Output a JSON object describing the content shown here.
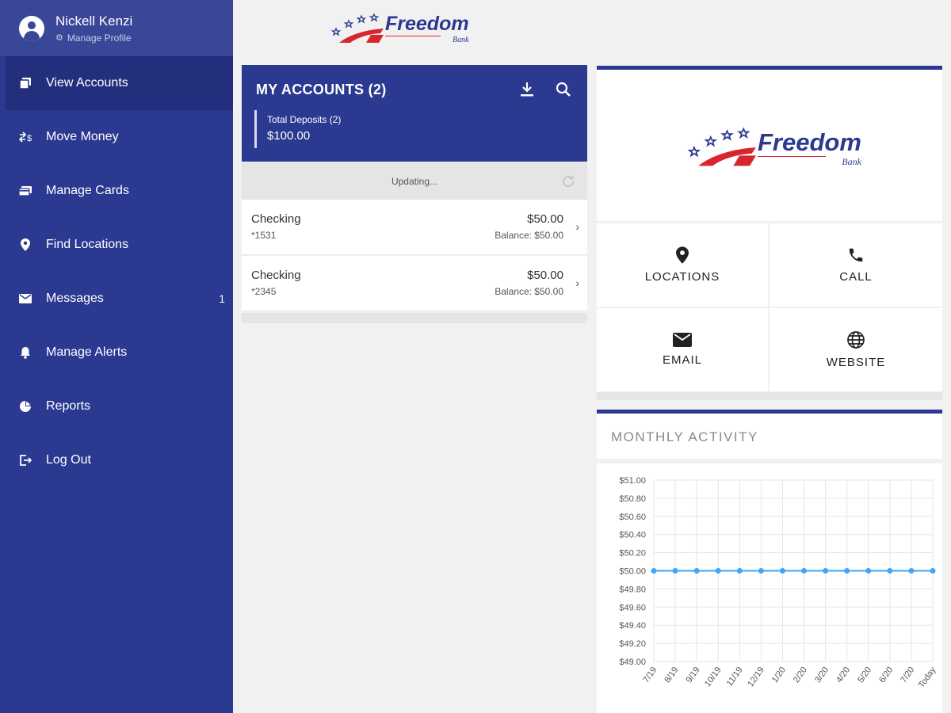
{
  "profile": {
    "name": "Nickell Kenzi",
    "manage_label": "Manage Profile"
  },
  "nav": [
    {
      "label": "View Accounts",
      "icon": "accounts-icon",
      "active": true
    },
    {
      "label": "Move Money",
      "icon": "transfer-icon"
    },
    {
      "label": "Manage Cards",
      "icon": "card-icon"
    },
    {
      "label": "Find Locations",
      "icon": "location-pin-icon"
    },
    {
      "label": "Messages",
      "icon": "envelope-icon",
      "badge": "1"
    },
    {
      "label": "Manage Alerts",
      "icon": "bell-icon"
    },
    {
      "label": "Reports",
      "icon": "pie-chart-icon"
    },
    {
      "label": "Log Out",
      "icon": "logout-icon"
    }
  ],
  "logo": {
    "brand": "Freedom",
    "sub": "Bank"
  },
  "accounts": {
    "title": "MY ACCOUNTS (2)",
    "deposits_label": "Total Deposits (2)",
    "deposits_total": "$100.00",
    "status": "Updating...",
    "rows": [
      {
        "name": "Checking",
        "number": "*1531",
        "amount": "$50.00",
        "balance": "Balance: $50.00"
      },
      {
        "name": "Checking",
        "number": "*2345",
        "amount": "$50.00",
        "balance": "Balance: $50.00"
      }
    ]
  },
  "quick_links": {
    "locations": "LOCATIONS",
    "call": "CALL",
    "email": "EMAIL",
    "website": "WEBSITE"
  },
  "activity": {
    "title": "MONTHLY ACTIVITY"
  },
  "colors": {
    "brand_blue": "#2b3990",
    "brand_red": "#d7262e",
    "line": "#42a5f5"
  },
  "chart_data": {
    "type": "line",
    "categories": [
      "7/19",
      "8/19",
      "9/19",
      "10/19",
      "11/19",
      "12/19",
      "1/20",
      "2/20",
      "3/20",
      "4/20",
      "5/20",
      "6/20",
      "7/20",
      "Today"
    ],
    "series": [
      {
        "values": [
          50,
          50,
          50,
          50,
          50,
          50,
          50,
          50,
          50,
          50,
          50,
          50,
          50,
          50
        ]
      }
    ],
    "y_ticks": [
      "$51.00",
      "$50.80",
      "$50.60",
      "$50.40",
      "$50.20",
      "$50.00",
      "$49.80",
      "$49.60",
      "$49.40",
      "$49.20",
      "$49.00"
    ],
    "ylim": [
      49,
      51
    ],
    "grid": true
  }
}
